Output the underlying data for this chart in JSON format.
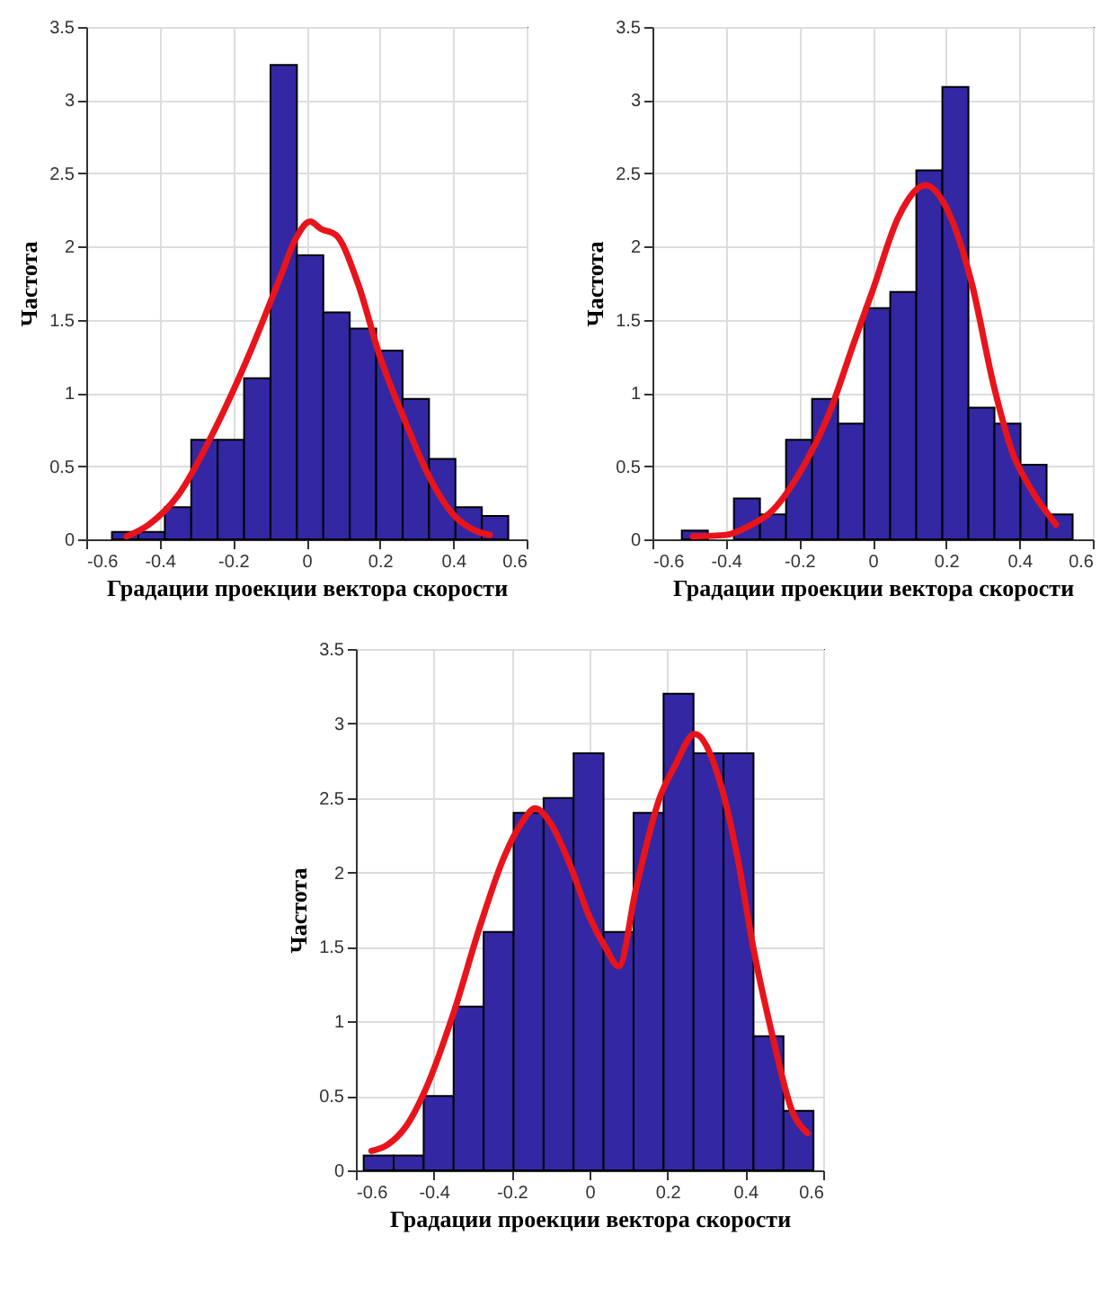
{
  "chart_data": [
    {
      "type": "histogram",
      "xlabel": "Градации проекции вектора скорости",
      "ylabel": "Частота",
      "xlim": [
        -0.6,
        0.6
      ],
      "xticks": [
        -0.6,
        -0.4,
        -0.2,
        0,
        0.2,
        0.4,
        0.6
      ],
      "ylim": [
        0,
        3.5
      ],
      "yticks": [
        0,
        0.5,
        1,
        1.5,
        2,
        2.5,
        3,
        3.5
      ],
      "grid": true,
      "bins": [
        -0.53,
        -0.458,
        -0.386,
        -0.314,
        -0.242,
        -0.17,
        -0.098,
        -0.026,
        0.046,
        0.118,
        0.19,
        0.262,
        0.334,
        0.406,
        0.478,
        0.55
      ],
      "series": [
        {
          "type": "histogram",
          "color": "#3327a3",
          "values": [
            0.05,
            0.05,
            0.22,
            0.68,
            0.68,
            1.1,
            3.24,
            1.94,
            1.55,
            1.44,
            1.29,
            0.96,
            0.55,
            0.22,
            0.16
          ]
        },
        {
          "type": "line",
          "color": "#e8141c",
          "x": [
            -0.49,
            -0.43,
            -0.35,
            -0.25,
            -0.15,
            -0.07,
            -0.03,
            0.01,
            0.04,
            0.08,
            0.14,
            0.2,
            0.27,
            0.33,
            0.4,
            0.46,
            0.5
          ],
          "values": [
            0.02,
            0.1,
            0.3,
            0.75,
            1.3,
            1.8,
            2.05,
            2.17,
            2.12,
            2.08,
            1.75,
            1.25,
            0.8,
            0.45,
            0.17,
            0.06,
            0.03
          ]
        }
      ]
    },
    {
      "type": "histogram",
      "xlabel": "Градации проекции вектора скорости",
      "ylabel": "Частота",
      "xlim": [
        -0.6,
        0.6
      ],
      "xticks": [
        -0.6,
        -0.4,
        -0.2,
        0,
        0.2,
        0.4,
        0.6
      ],
      "ylim": [
        0,
        3.5
      ],
      "yticks": [
        0,
        0.5,
        1,
        1.5,
        2,
        2.5,
        3,
        3.5
      ],
      "grid": true,
      "bins": [
        -0.52,
        -0.449,
        -0.378,
        -0.307,
        -0.236,
        -0.165,
        -0.094,
        -0.023,
        0.048,
        0.119,
        0.19,
        0.261,
        0.332,
        0.403,
        0.474,
        0.545
      ],
      "series": [
        {
          "type": "histogram",
          "color": "#3327a3",
          "values": [
            0.06,
            null,
            0.28,
            0.17,
            0.68,
            0.96,
            0.79,
            1.58,
            1.69,
            2.52,
            3.09,
            0.9,
            0.79,
            0.51,
            0.17
          ]
        },
        {
          "type": "line",
          "color": "#e8141c",
          "x": [
            -0.49,
            -0.4,
            -0.33,
            -0.28,
            -0.2,
            -0.12,
            -0.05,
            0,
            0.07,
            0.145,
            0.2,
            0.27,
            0.33,
            0.38,
            0.43,
            0.5
          ],
          "values": [
            0.02,
            0.03,
            0.1,
            0.18,
            0.45,
            0.85,
            1.35,
            1.7,
            2.2,
            2.42,
            2.27,
            1.75,
            1.05,
            0.6,
            0.35,
            0.1
          ]
        }
      ]
    },
    {
      "type": "histogram",
      "xlabel": "Градации проекции вектора скорости",
      "ylabel": "Частота",
      "xlim": [
        -0.6,
        0.6
      ],
      "xticks": [
        -0.6,
        -0.4,
        -0.2,
        0,
        0.2,
        0.4,
        0.6
      ],
      "ylim": [
        0,
        3.5
      ],
      "yticks": [
        0,
        0.5,
        1,
        1.5,
        2,
        2.5,
        3,
        3.5
      ],
      "grid": true,
      "bins": [
        -0.58,
        -0.503,
        -0.426,
        -0.349,
        -0.272,
        -0.195,
        -0.118,
        -0.041,
        0.036,
        0.113,
        0.19,
        0.267,
        0.344,
        0.421,
        0.498,
        0.575
      ],
      "series": [
        {
          "type": "histogram",
          "color": "#3327a3",
          "values": [
            0.1,
            0.1,
            0.5,
            1.1,
            1.6,
            2.4,
            2.5,
            2.8,
            1.6,
            2.4,
            3.2,
            2.8,
            2.8,
            0.9,
            0.4
          ]
        },
        {
          "type": "line",
          "color": "#e8141c",
          "x": [
            -0.56,
            -0.52,
            -0.47,
            -0.42,
            -0.35,
            -0.28,
            -0.22,
            -0.17,
            -0.14,
            -0.1,
            -0.05,
            0,
            0.04,
            0.075,
            0.12,
            0.18,
            0.22,
            0.27,
            0.33,
            0.38,
            0.42,
            0.47,
            0.52,
            0.56
          ],
          "values": [
            0.13,
            0.17,
            0.3,
            0.55,
            1.05,
            1.65,
            2.1,
            2.35,
            2.43,
            2.33,
            2.05,
            1.7,
            1.5,
            1.37,
            1.9,
            2.5,
            2.72,
            2.93,
            2.65,
            2.1,
            1.5,
            0.9,
            0.4,
            0.25
          ]
        }
      ]
    }
  ]
}
